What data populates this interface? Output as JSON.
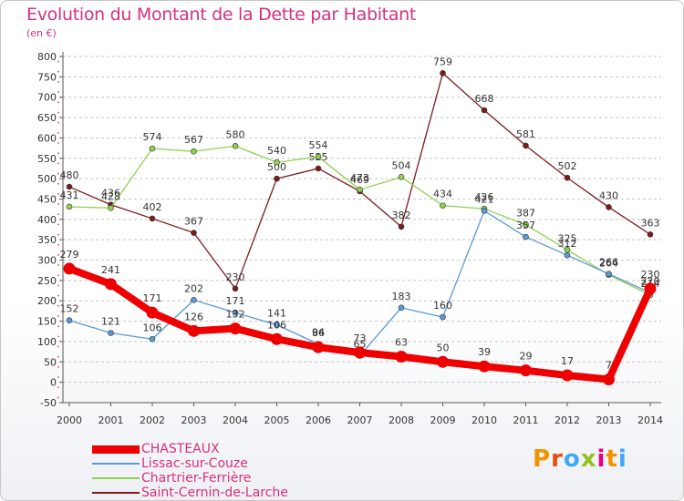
{
  "title": "Evolution du Montant de la Dette par Habitant",
  "subtitle": "(en €)",
  "logo": {
    "letters": [
      "P",
      "r",
      "o",
      "x",
      "i",
      "t",
      "i"
    ],
    "colors": [
      "#f29400",
      "#e84e0f",
      "#3fa9f5",
      "#95c11f",
      "#e6007e",
      "#f29400",
      "#3fa9f5"
    ]
  },
  "chart_data": {
    "type": "line",
    "title": "Evolution du Montant de la Dette par Habitant",
    "ylabel": "(en €)",
    "ylim": [
      -50,
      800
    ],
    "yticks": [
      "-50",
      "0",
      "50",
      "100",
      "150",
      "200",
      "250",
      "300",
      "350",
      "400",
      "450",
      "500",
      "550",
      "600",
      "650",
      "700",
      "750",
      "800"
    ],
    "ytick_values": [
      -50,
      0,
      50,
      100,
      150,
      200,
      250,
      300,
      350,
      400,
      450,
      500,
      550,
      600,
      650,
      700,
      750,
      800
    ],
    "x": [
      "2000",
      "2001",
      "2002",
      "2003",
      "2004",
      "2005",
      "2006",
      "2007",
      "2008",
      "2009",
      "2010",
      "2011",
      "2012",
      "2013",
      "2014"
    ],
    "grid": "horizontal dashed",
    "legend_position": "bottom-left",
    "series": [
      {
        "name": "Saint-Cernin-de-Larche",
        "color": "#7b1c1c",
        "style": "thin",
        "values": [
          480,
          436,
          402,
          367,
          230,
          500,
          525,
          469,
          382,
          759,
          668,
          581,
          502,
          430,
          363
        ],
        "labels": [
          "480",
          "436",
          "402",
          "367",
          "230",
          "500",
          "525",
          "469",
          "382",
          "759",
          "668",
          "581",
          "502",
          "430",
          "363"
        ]
      },
      {
        "name": "Chartrier-Ferrière",
        "color": "#8fd14f",
        "style": "thin",
        "values": [
          431,
          428,
          574,
          567,
          580,
          540,
          554,
          473,
          504,
          434,
          426,
          387,
          325,
          264,
          214
        ],
        "labels": [
          "431",
          "428",
          "574",
          "567",
          "580",
          "540",
          "554",
          "473",
          "504",
          "434",
          "426",
          "387",
          "325",
          "264",
          "214"
        ]
      },
      {
        "name": "Lissac-sur-Couze",
        "color": "#5b9bd5",
        "style": "thin",
        "values": [
          152,
          121,
          106,
          202,
          171,
          141,
          94,
          65,
          183,
          160,
          421,
          357,
          312,
          266,
          220
        ],
        "labels": [
          "152",
          "121",
          "106",
          "202",
          "171",
          "141",
          "94",
          "65",
          "183",
          "160",
          "421",
          "357",
          "312",
          "266",
          "220"
        ]
      },
      {
        "name": "CHASTEAUX",
        "color": "#ee0000",
        "style": "thick",
        "values": [
          279,
          241,
          171,
          126,
          132,
          106,
          86,
          73,
          63,
          50,
          39,
          29,
          17,
          7,
          230
        ],
        "labels": [
          "279",
          "241",
          "171",
          "126",
          "132",
          "106",
          "86",
          "73",
          "63",
          "50",
          "39",
          "29",
          "17",
          "7",
          "230"
        ]
      }
    ],
    "legend": [
      {
        "name": "CHASTEAUX",
        "color": "#ee0000",
        "style": "thick"
      },
      {
        "name": "Lissac-sur-Couze",
        "color": "#5b9bd5",
        "style": "thin"
      },
      {
        "name": "Chartrier-Ferrière",
        "color": "#8fd14f",
        "style": "thin"
      },
      {
        "name": "Saint-Cernin-de-Larche",
        "color": "#7b1c1c",
        "style": "thin"
      }
    ]
  }
}
